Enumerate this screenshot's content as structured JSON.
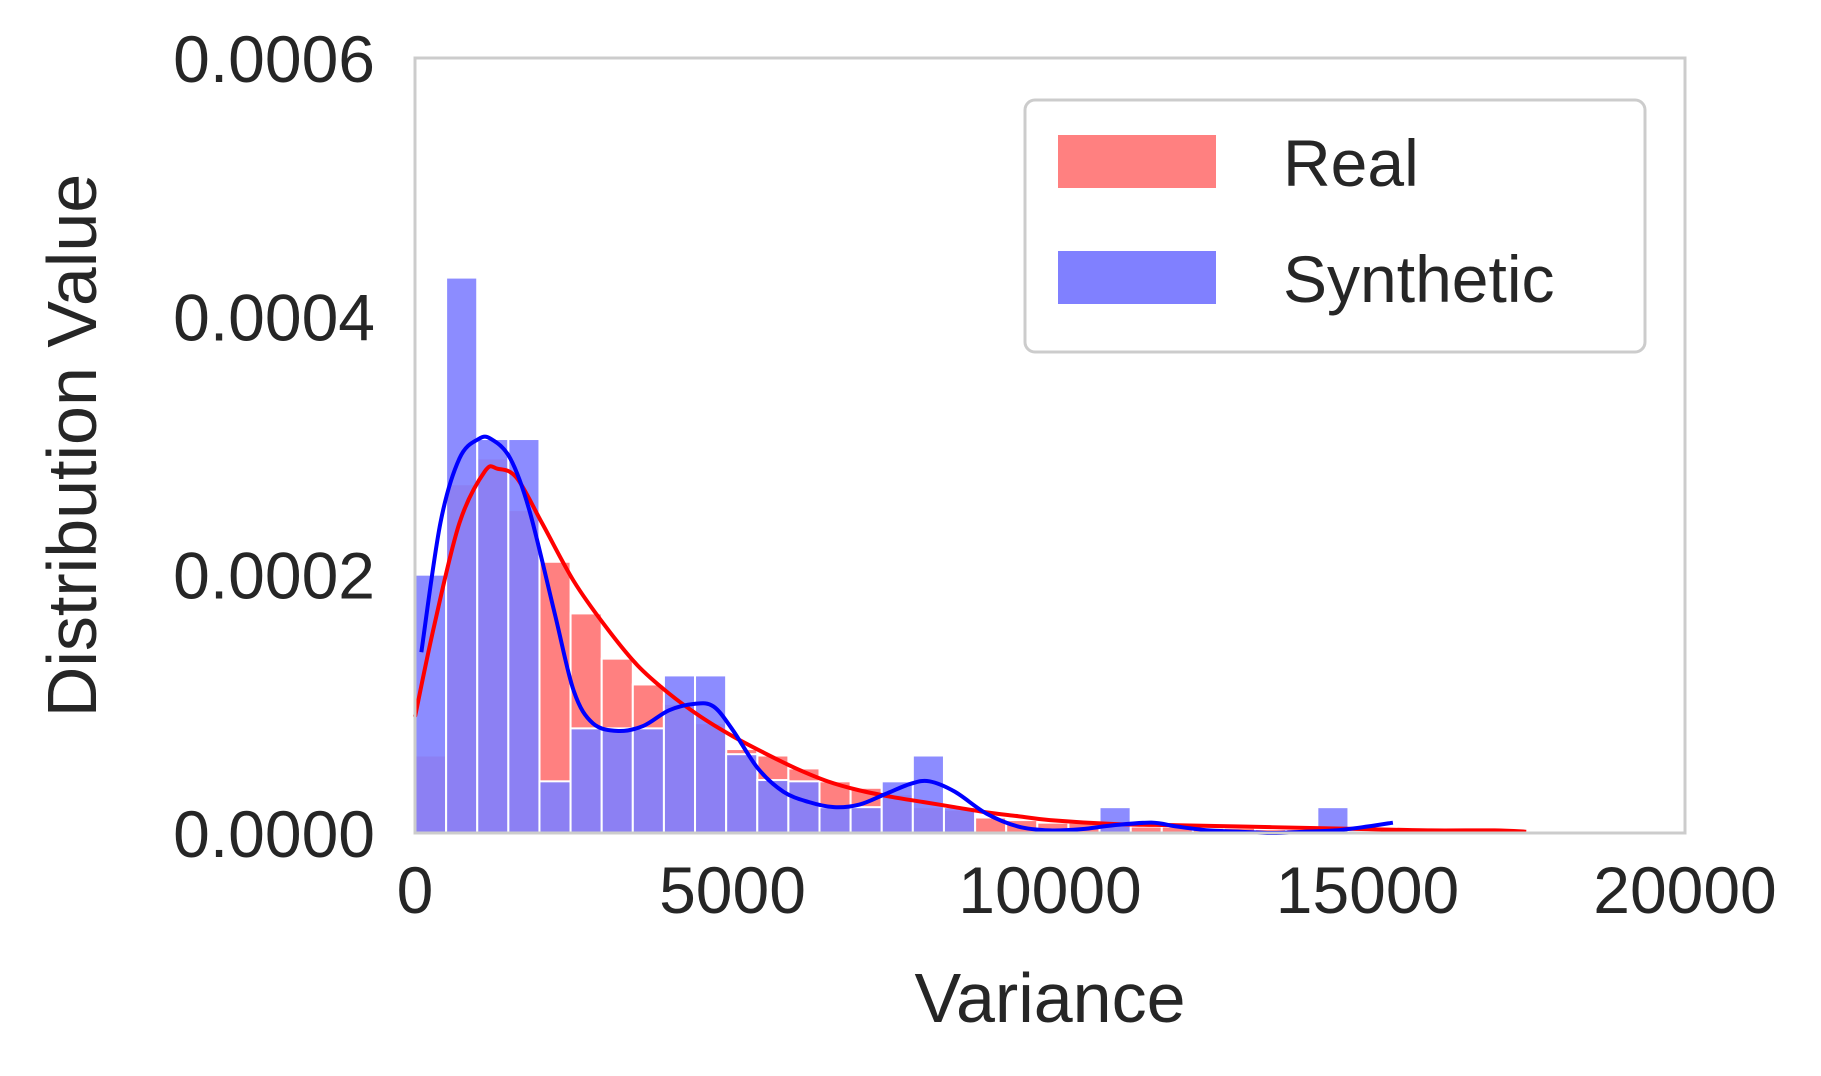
{
  "chart_data": {
    "type": "bar",
    "title": "",
    "xlabel": "Variance",
    "ylabel": "Distribution Value",
    "xlim": [
      0,
      20000
    ],
    "ylim": [
      0,
      0.0006
    ],
    "xticks": [
      0,
      5000,
      10000,
      15000,
      20000
    ],
    "xtick_labels": [
      "0",
      "5000",
      "10000",
      "15000",
      "20000"
    ],
    "yticks": [
      0,
      0.0002,
      0.0004,
      0.0006
    ],
    "ytick_labels": [
      "0.0000",
      "0.0002",
      "0.0004",
      "0.0006"
    ],
    "grid": false,
    "legend": {
      "position": "top-right",
      "entries": [
        "Real",
        "Synthetic"
      ]
    },
    "series": [
      {
        "name": "Real",
        "kind": "histogram+kde",
        "color": "#ff0000",
        "fill": "#ff8080",
        "bin_width": 490,
        "bins_start": [
          0,
          490,
          980,
          1470,
          1960,
          2450,
          2940,
          3430,
          3920,
          4410,
          4900,
          5390,
          5880,
          6370,
          6860,
          7350,
          7840,
          8330,
          8820,
          9310,
          9800,
          10290,
          10780,
          11270,
          11760,
          12250,
          12740,
          13230,
          13720,
          14210,
          14700,
          15190,
          15680,
          16170,
          16660,
          17150
        ],
        "values": [
          6e-05,
          0.00027,
          0.00029,
          0.00025,
          0.00021,
          0.00017,
          0.000135,
          0.000115,
          0.0001,
          8.5e-05,
          6.5e-05,
          6e-05,
          5e-05,
          4e-05,
          3.5e-05,
          3e-05,
          2e-05,
          1.8e-05,
          1.2e-05,
          1e-05,
          8e-06,
          8e-06,
          6e-06,
          5e-06,
          5e-06,
          4e-06,
          4e-06,
          3e-06,
          3e-06,
          3e-06,
          2e-06,
          2e-06,
          2e-06,
          2e-06,
          2e-06,
          1e-06
        ],
        "kde_x": [
          0,
          300,
          700,
          1100,
          1300,
          1600,
          2000,
          2500,
          3000,
          3500,
          4000,
          4500,
          5000,
          5500,
          6000,
          6500,
          7000,
          7500,
          8000,
          8500,
          9000,
          9500,
          10000,
          11000,
          12000,
          13000,
          14000,
          15000,
          16000,
          17000,
          17500
        ],
        "kde_y": [
          9e-05,
          0.00016,
          0.00024,
          0.00028,
          0.000282,
          0.000275,
          0.00024,
          0.000195,
          0.00016,
          0.00013,
          0.000108,
          9e-05,
          7.5e-05,
          6.2e-05,
          5e-05,
          4e-05,
          3.3e-05,
          2.8e-05,
          2.4e-05,
          2e-05,
          1.6e-05,
          1.3e-05,
          1e-05,
          7e-06,
          6e-06,
          5e-06,
          4e-06,
          3e-06,
          2e-06,
          2e-06,
          1e-06
        ]
      },
      {
        "name": "Synthetic",
        "kind": "histogram+kde",
        "color": "#0000ff",
        "fill": "#8080ff",
        "bin_width": 490,
        "bins_start": [
          0,
          490,
          980,
          1470,
          1960,
          2450,
          2940,
          3430,
          3920,
          4410,
          4900,
          5390,
          5880,
          6370,
          6860,
          7350,
          7840,
          8330,
          8820,
          9310,
          9800,
          10290,
          10780,
          11270,
          11760,
          12250,
          12740,
          13230,
          13720,
          14210,
          14700,
          15190
        ],
        "values": [
          0.0002,
          0.00043,
          0.000305,
          0.000305,
          4e-05,
          8.1e-05,
          8.1e-05,
          8.1e-05,
          0.000122,
          0.000122,
          6.1e-05,
          4.1e-05,
          4e-05,
          2e-05,
          2e-05,
          4e-05,
          6e-05,
          2e-05,
          0.0,
          0.0,
          0.0,
          0.0,
          2e-05,
          0.0,
          0.0,
          0.0,
          0.0,
          0.0,
          0.0,
          2e-05,
          0.0,
          0.0
        ],
        "kde_x": [
          100,
          400,
          700,
          1000,
          1200,
          1500,
          1800,
          2200,
          2500,
          2800,
          3200,
          3600,
          4000,
          4400,
          4700,
          5000,
          5400,
          5800,
          6200,
          6600,
          7000,
          7400,
          7800,
          8100,
          8500,
          9000,
          9500,
          10000,
          10500,
          11000,
          11600,
          12000,
          12500,
          13000,
          13500,
          14000,
          14500,
          15000,
          15400
        ],
        "kde_y": [
          0.00014,
          0.00024,
          0.00029,
          0.000305,
          0.000305,
          0.00029,
          0.00025,
          0.00017,
          0.00011,
          8.5e-05,
          7.9e-05,
          8.3e-05,
          9.5e-05,
          0.0001,
          9.8e-05,
          8e-05,
          5e-05,
          3.2e-05,
          2.4e-05,
          2e-05,
          2.2e-05,
          3e-05,
          3.8e-05,
          4e-05,
          3.2e-05,
          1.5e-05,
          5e-06,
          2e-06,
          3e-06,
          6e-06,
          8e-06,
          5e-06,
          2e-06,
          1e-06,
          0.0,
          1e-06,
          2e-06,
          5e-06,
          8e-06
        ]
      }
    ]
  }
}
